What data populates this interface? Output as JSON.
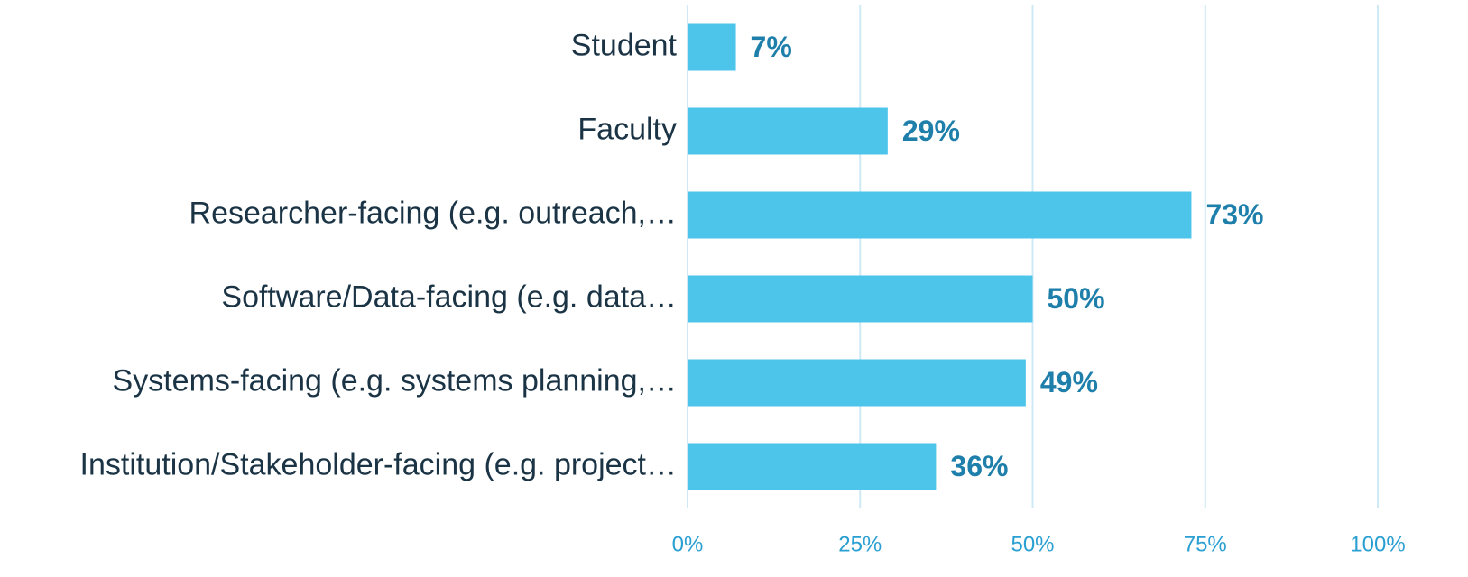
{
  "chart_data": {
    "type": "hbar",
    "categories": [
      "Student",
      "Faculty",
      "Researcher-facing (e.g. outreach,…",
      "Software/Data-facing (e.g. data…",
      "Systems-facing (e.g. systems planning,…",
      "Institution/Stakeholder-facing (e.g. project…"
    ],
    "values": [
      7,
      29,
      73,
      50,
      49,
      36
    ],
    "value_labels": [
      "7%",
      "29%",
      "73%",
      "50%",
      "49%",
      "36%"
    ],
    "color": "#4dc5ea",
    "xlim": [
      0,
      100
    ],
    "xticks": [
      {
        "value": 0,
        "label": "0%"
      },
      {
        "value": 25,
        "label": "25%"
      },
      {
        "value": 50,
        "label": "50%"
      },
      {
        "value": 75,
        "label": "75%"
      },
      {
        "value": 100,
        "label": "100%"
      }
    ],
    "grid": true
  }
}
